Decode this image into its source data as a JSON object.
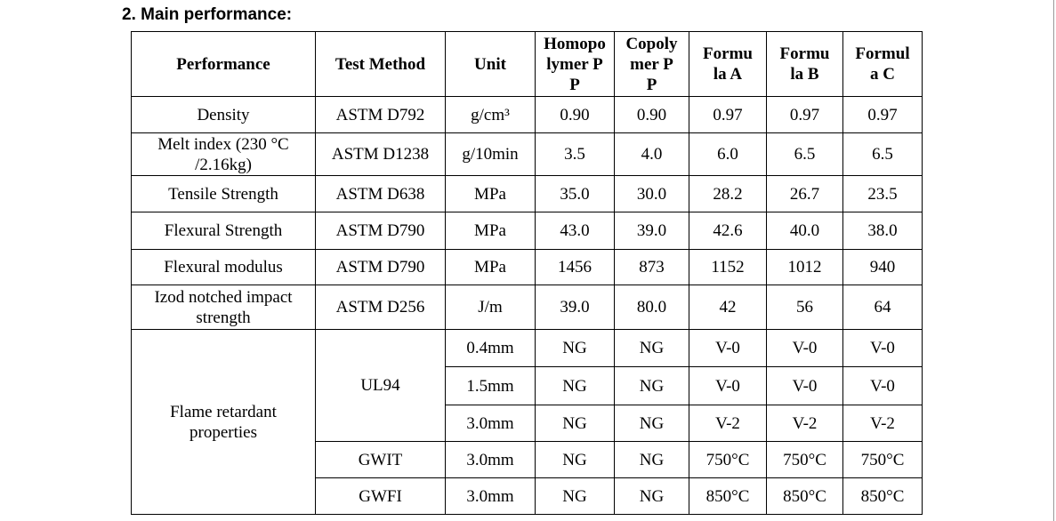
{
  "header": {
    "title": "2. Main performance:"
  },
  "table": {
    "columns": [
      "Performance",
      "Test Method",
      "Unit",
      "Homopolymer PP",
      "Copolymer PP",
      "Formula A",
      "Formula B",
      "Formula C"
    ],
    "rows": [
      [
        "Density",
        "ASTM D792",
        "g/cm³",
        "0.90",
        "0.90",
        "0.97",
        "0.97",
        "0.97"
      ],
      [
        "Melt index (230 °C /2.16kg)",
        "ASTM D1238",
        "g/10min",
        "3.5",
        "4.0",
        "6.0",
        "6.5",
        "6.5"
      ],
      [
        "Tensile Strength",
        "ASTM D638",
        "MPa",
        "35.0",
        "30.0",
        "28.2",
        "26.7",
        "23.5"
      ],
      [
        "Flexural Strength",
        "ASTM D790",
        "MPa",
        "43.0",
        "39.0",
        "42.6",
        "40.0",
        "38.0"
      ],
      [
        "Flexural modulus",
        "ASTM D790",
        "MPa",
        "1456",
        "873",
        "1152",
        "1012",
        "940"
      ],
      [
        "Izod notched impact strength",
        "ASTM D256",
        "J/m",
        "39.0",
        "80.0",
        "42",
        "56",
        "64"
      ],
      [
        "Flame retardant properties",
        "UL94",
        "0.4mm",
        "NG",
        "NG",
        "V-0",
        "V-0",
        "V-0"
      ],
      [
        "1.5mm",
        "NG",
        "NG",
        "V-0",
        "V-0",
        "V-0"
      ],
      [
        "3.0mm",
        "NG",
        "NG",
        "V-2",
        "V-2",
        "V-2"
      ],
      [
        "GWIT",
        "3.0mm",
        "NG",
        "NG",
        "750°C",
        "750°C",
        "750°C"
      ],
      [
        "GWFI",
        "3.0mm",
        "NG",
        "NG",
        "850°C",
        "850°C",
        "850°C"
      ]
    ]
  }
}
